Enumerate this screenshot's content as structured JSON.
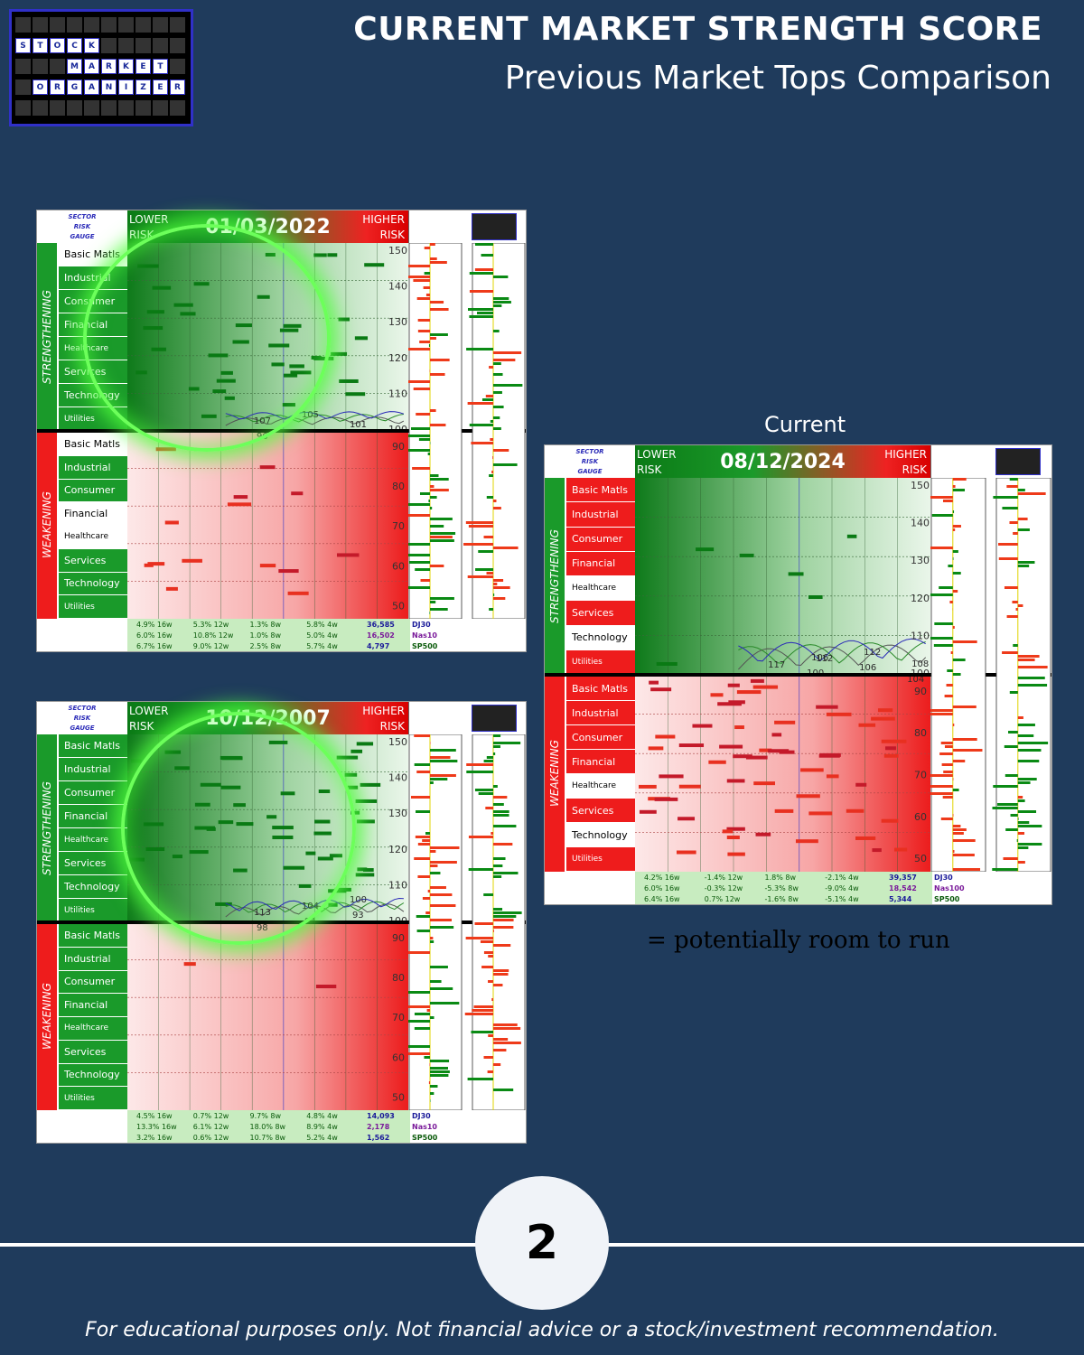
{
  "header": {
    "title": "CURRENT MARKET STRENGTH SCORE",
    "subtitle": "Previous Market Tops Comparison"
  },
  "logo": {
    "rows": [
      [
        "S",
        "T",
        "O",
        "C",
        "K"
      ],
      [
        "M",
        "A",
        "R",
        "K",
        "E",
        "T"
      ],
      [
        "O",
        "R",
        "G",
        "A",
        "N",
        "I",
        "Z",
        "E",
        "R"
      ]
    ]
  },
  "gauge_label": [
    "SECTOR",
    "RISK",
    "GAUGE"
  ],
  "labels": {
    "lower": "LOWER",
    "risk": "RISK",
    "higher": "HIGHER",
    "strengthening": "STRENGTHENING",
    "weakening": "WEAKENING",
    "current": "Current",
    "room": "= potentially room to run"
  },
  "sectors": [
    "Basic Matls",
    "Industrial",
    "Consumer",
    "Financial",
    "Healthcare",
    "Services",
    "Technology",
    "Utilities"
  ],
  "y_ticks_top": [
    "150",
    "140",
    "130",
    "120",
    "110",
    "100"
  ],
  "y_ticks_bottom": [
    "90",
    "80",
    "70",
    "60",
    "50"
  ],
  "panels": [
    {
      "id": "p2022",
      "date": "01/03/2022",
      "footer": [
        {
          "cells": [
            "4.9% 16w",
            "5.3% 12w",
            "1.3% 8w",
            "5.8% 4w"
          ],
          "value": "36,585",
          "index": "DJ30"
        },
        {
          "cells": [
            "6.0% 16w",
            "10.8% 12w",
            "1.0% 8w",
            "5.0% 4w"
          ],
          "value": "16,502",
          "index": "Nas10"
        },
        {
          "cells": [
            "6.7% 16w",
            "9.0% 12w",
            "2.5% 8w",
            "5.7% 4w"
          ],
          "value": "4,797",
          "index": "SP500"
        }
      ],
      "line_labels": [
        "107",
        "105",
        "101",
        "96"
      ]
    },
    {
      "id": "p2007",
      "date": "10/12/2007",
      "footer": [
        {
          "cells": [
            "4.5% 16w",
            "0.7% 12w",
            "9.7% 8w",
            "4.8% 4w"
          ],
          "value": "14,093",
          "index": "DJ30"
        },
        {
          "cells": [
            "13.3% 16w",
            "6.1% 12w",
            "18.0% 8w",
            "8.9% 4w"
          ],
          "value": "2,178",
          "index": "Nas10"
        },
        {
          "cells": [
            "3.2% 16w",
            "0.6% 12w",
            "10.7% 8w",
            "5.2% 4w"
          ],
          "value": "1,562",
          "index": "SP500"
        }
      ],
      "line_labels": [
        "113",
        "104",
        "100",
        "98",
        "94",
        "93"
      ]
    },
    {
      "id": "p2024",
      "date": "08/12/2024",
      "footer": [
        {
          "cells": [
            "4.2% 16w",
            "-1.4% 12w",
            "1.8% 8w",
            "-2.1% 4w"
          ],
          "value": "39,357",
          "index": "DJ30"
        },
        {
          "cells": [
            "6.0% 16w",
            "-0.3% 12w",
            "-5.3% 8w",
            "-9.0% 4w"
          ],
          "value": "18,542",
          "index": "Nas100"
        },
        {
          "cells": [
            "6.4% 16w",
            "0.7% 12w",
            "-1.6% 8w",
            "-5.1% 4w"
          ],
          "value": "5,344",
          "index": "SP500"
        }
      ],
      "line_labels": [
        "117",
        "112",
        "112",
        "108",
        "106",
        "106",
        "104",
        "100"
      ]
    }
  ],
  "badge": "2",
  "disclaimer": "For educational purposes only. Not financial advice or a stock/investment recommendation.",
  "colors": {
    "background": "#1f3b5c",
    "green": "#1a9a2a",
    "red": "#ee1c1c",
    "glow": "#6cff5a"
  }
}
